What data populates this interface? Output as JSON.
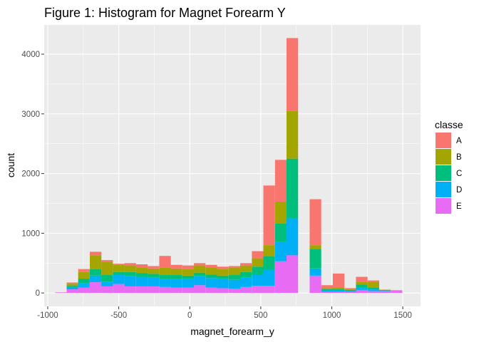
{
  "chart_data": {
    "type": "bar",
    "subtype": "stacked-histogram",
    "title": "Figure 1: Histogram for Magnet Forearm Y",
    "xlabel": "magnet_forearm_y",
    "ylabel": "count",
    "xlim": [
      -1025,
      1625
    ],
    "ylim": [
      -225,
      4490
    ],
    "x_ticks": [
      -1000,
      -500,
      0,
      500,
      1000,
      1500
    ],
    "x_tick_labels": [
      "-1000",
      "-500",
      "0",
      "500",
      "1000",
      "1500"
    ],
    "y_ticks": [
      0,
      1000,
      2000,
      3000,
      4000
    ],
    "y_tick_labels": [
      "0",
      "1000",
      "2000",
      "3000",
      "4000"
    ],
    "bin_width": 81.5,
    "x": [
      -908,
      -826,
      -745,
      -663,
      -582,
      -500,
      -419,
      -337,
      -256,
      -174,
      -93,
      -11,
      70,
      152,
      233,
      315,
      396,
      478,
      559,
      641,
      722,
      804,
      885,
      967,
      1048,
      1130,
      1211,
      1293,
      1374,
      1456
    ],
    "legend": {
      "title": "classe",
      "position": "right"
    },
    "grid": true,
    "series": [
      {
        "name": "A",
        "color": "#F8766D",
        "values": [
          0,
          20,
          50,
          60,
          30,
          20,
          40,
          50,
          40,
          200,
          60,
          60,
          40,
          40,
          40,
          30,
          40,
          120,
          1000,
          700,
          1220,
          0,
          770,
          50,
          240,
          20,
          80,
          20,
          0,
          0
        ]
      },
      {
        "name": "B",
        "color": "#A3A500",
        "values": [
          0,
          30,
          110,
          230,
          220,
          120,
          110,
          100,
          90,
          120,
          110,
          110,
          120,
          120,
          110,
          120,
          110,
          140,
          180,
          370,
          800,
          0,
          60,
          10,
          15,
          10,
          50,
          100,
          5,
          0
        ]
      },
      {
        "name": "C",
        "color": "#00BF7D",
        "values": [
          0,
          25,
          80,
          110,
          110,
          50,
          70,
          60,
          60,
          60,
          60,
          60,
          60,
          60,
          60,
          80,
          90,
          140,
          230,
          300,
          1000,
          0,
          330,
          20,
          20,
          15,
          50,
          30,
          5,
          0
        ]
      },
      {
        "name": "D",
        "color": "#00B0F6",
        "values": [
          0,
          40,
          70,
          110,
          80,
          150,
          170,
          160,
          150,
          140,
          150,
          140,
          150,
          160,
          150,
          150,
          160,
          180,
          270,
          330,
          620,
          0,
          120,
          30,
          30,
          20,
          40,
          30,
          15,
          5
        ]
      },
      {
        "name": "E",
        "color": "#E76BF3",
        "values": [
          10,
          60,
          90,
          180,
          110,
          150,
          110,
          110,
          110,
          100,
          90,
          90,
          130,
          90,
          80,
          70,
          100,
          120,
          120,
          530,
          630,
          0,
          290,
          20,
          20,
          15,
          50,
          30,
          30,
          40
        ]
      }
    ]
  },
  "colors": {
    "panel_background": "#EBEBEB",
    "grid_major": "#FFFFFF",
    "tick_text": "#4D4D4D"
  }
}
